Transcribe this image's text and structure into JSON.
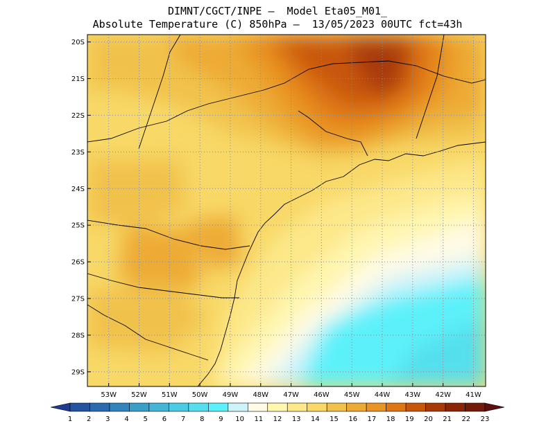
{
  "header": {
    "line1": "DIMNT/CGCT/INPE –  Model Eta05_M01_",
    "line2": "Absolute Temperature (C) 850hPa –  13/05/2023 00UTC fct=43h"
  },
  "map": {
    "lat_labels": [
      "20S",
      "21S",
      "22S",
      "23S",
      "24S",
      "25S",
      "26S",
      "27S",
      "28S",
      "29S"
    ],
    "lon_labels": [
      "53W",
      "52W",
      "51W",
      "50W",
      "49W",
      "48W",
      "47W",
      "46W",
      "45W",
      "44W",
      "43W",
      "42W",
      "41W"
    ],
    "lat_range": [
      -29.4,
      -19.8
    ],
    "lon_range": [
      -53.7,
      -40.6
    ]
  },
  "colorbar": {
    "labels": [
      "1",
      "2",
      "3",
      "4",
      "5",
      "6",
      "7",
      "8",
      "9",
      "10",
      "11",
      "12",
      "13",
      "14",
      "15",
      "16",
      "17",
      "18",
      "19",
      "20",
      "21",
      "22",
      "23"
    ],
    "colors": [
      "#1f3a93",
      "#2453a0",
      "#2a6aae",
      "#3185bc",
      "#3a9ec9",
      "#43b6d6",
      "#4ccce3",
      "#55dfee",
      "#5cf1fa",
      "#cdf3fb",
      "#fffbe6",
      "#fff6b0",
      "#fde88a",
      "#f8d867",
      "#f1c24b",
      "#edab35",
      "#e99423",
      "#de7614",
      "#c8560b",
      "#a83a07",
      "#8a2606",
      "#741a0a",
      "#5c0f0f"
    ]
  },
  "colors": {
    "frame": "#000000",
    "grid": "#888888"
  }
}
